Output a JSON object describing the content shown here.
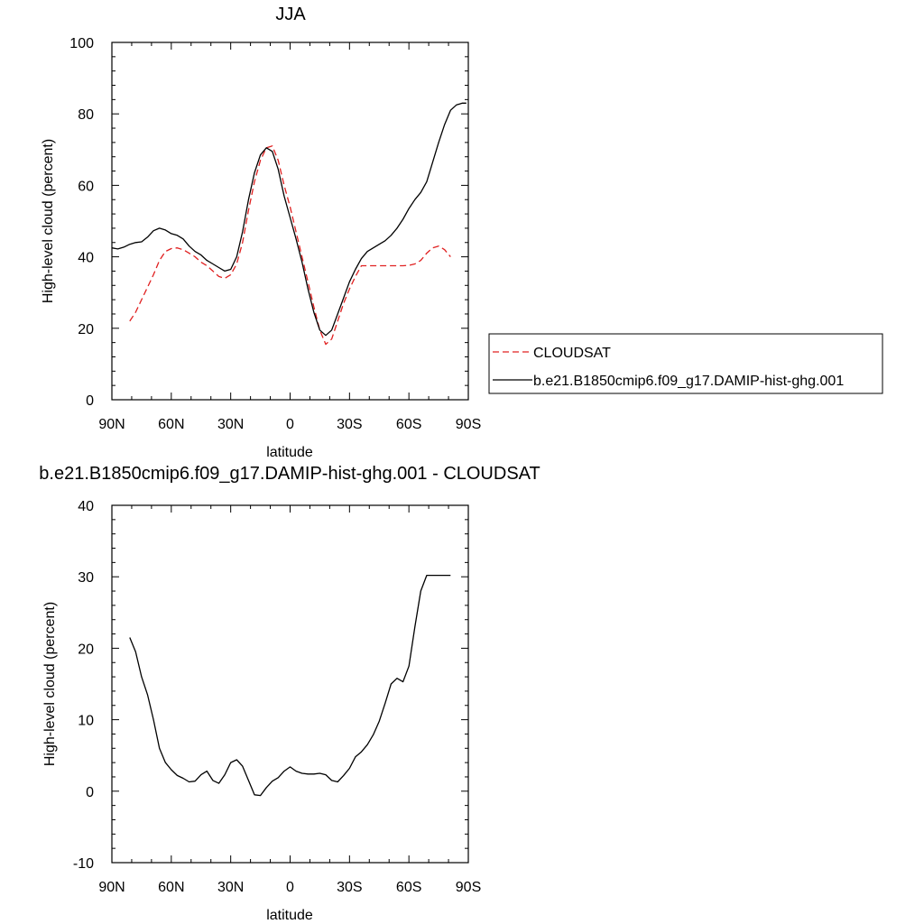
{
  "chart_data": [
    {
      "type": "line",
      "title": "JJA",
      "xlabel": "latitude",
      "ylabel": "High-level cloud (percent)",
      "xlim": [
        -90,
        90
      ],
      "ylim": [
        0,
        100
      ],
      "x_ticks": [
        -90,
        -60,
        -30,
        0,
        30,
        60,
        90
      ],
      "x_tick_labels": [
        "90N",
        "60N",
        "30N",
        "0",
        "30S",
        "60S",
        "90S"
      ],
      "y_ticks": [
        0,
        20,
        40,
        60,
        80,
        100
      ],
      "y_tick_labels": [
        "0",
        "20",
        "40",
        "60",
        "80",
        "100"
      ],
      "legend_position": "right",
      "series": [
        {
          "name": "CLOUDSAT",
          "color": "#e02020",
          "dash": "dashed",
          "x": [
            -81,
            -78,
            -75,
            -72,
            -69,
            -66,
            -63,
            -60,
            -57,
            -54,
            -51,
            -48,
            -45,
            -42,
            -39,
            -36,
            -33,
            -30,
            -27,
            -24,
            -21,
            -18,
            -15,
            -12,
            -9,
            -6,
            -3,
            0,
            3,
            6,
            9,
            12,
            15,
            18,
            21,
            24,
            27,
            30,
            33,
            36,
            39,
            42,
            45,
            48,
            51,
            54,
            57,
            60,
            63,
            66,
            69,
            72,
            75,
            78,
            81
          ],
          "y": [
            22,
            24.5,
            28,
            31.5,
            35,
            39,
            41.5,
            42.3,
            42.5,
            42,
            41,
            40,
            38.5,
            37.5,
            36,
            34.5,
            34,
            35,
            38,
            44,
            53,
            61,
            67,
            70.5,
            71,
            67,
            60,
            54,
            47,
            40,
            33,
            26,
            19.5,
            15.5,
            17,
            22,
            27,
            31,
            34.5,
            37.5,
            37.5,
            37.5,
            37.5,
            37.5,
            37.5,
            37.5,
            37.5,
            37.6,
            38,
            39,
            41,
            42.5,
            43,
            42,
            40
          ]
        },
        {
          "name": "b.e21.B1850cmip6.f09_g17.DAMIP-hist-ghg.001",
          "color": "#000000",
          "dash": "solid",
          "x": [
            -90,
            -87,
            -84,
            -81,
            -78,
            -75,
            -72,
            -69,
            -66,
            -63,
            -60,
            -57,
            -54,
            -51,
            -48,
            -45,
            -42,
            -39,
            -36,
            -33,
            -30,
            -27,
            -24,
            -21,
            -18,
            -15,
            -12,
            -9,
            -6,
            -3,
            0,
            3,
            6,
            9,
            12,
            15,
            18,
            21,
            24,
            27,
            30,
            33,
            36,
            39,
            42,
            45,
            48,
            51,
            54,
            57,
            60,
            63,
            66,
            69,
            72,
            75,
            78,
            81,
            84,
            87,
            89
          ],
          "y": [
            42.5,
            42.2,
            42.7,
            43.5,
            44,
            44.2,
            45.5,
            47.3,
            48,
            47.5,
            46.5,
            46,
            45,
            43,
            41.5,
            40.5,
            39,
            38,
            37,
            36,
            36.5,
            40,
            47,
            56,
            63.5,
            68.5,
            70.5,
            69.5,
            64.5,
            57,
            51,
            45,
            38.5,
            31,
            24.5,
            19.5,
            18,
            19.5,
            24,
            28.5,
            33,
            36.5,
            39.5,
            41.5,
            42.5,
            43.5,
            44.5,
            46,
            48,
            50.5,
            53.5,
            56,
            58,
            61,
            66.5,
            72,
            77,
            81,
            82.5,
            83,
            83
          ]
        }
      ]
    },
    {
      "type": "line",
      "title": "b.e21.B1850cmip6.f09_g17.DAMIP-hist-ghg.001 - CLOUDSAT",
      "xlabel": "latitude",
      "ylabel": "High-level cloud (percent)",
      "xlim": [
        -90,
        90
      ],
      "ylim": [
        -10,
        40
      ],
      "x_ticks": [
        -90,
        -60,
        -30,
        0,
        30,
        60,
        90
      ],
      "x_tick_labels": [
        "90N",
        "60N",
        "30N",
        "0",
        "30S",
        "60S",
        "90S"
      ],
      "y_ticks": [
        -10,
        0,
        10,
        20,
        30,
        40
      ],
      "y_tick_labels": [
        "-10",
        "0",
        "10",
        "20",
        "30",
        "40"
      ],
      "series": [
        {
          "color": "#000000",
          "dash": "solid",
          "x": [
            -81,
            -78,
            -75,
            -72,
            -69,
            -66,
            -63,
            -60,
            -57,
            -54,
            -51,
            -48,
            -45,
            -42,
            -39,
            -36,
            -33,
            -30,
            -27,
            -24,
            -21,
            -18,
            -15,
            -12,
            -9,
            -6,
            -3,
            0,
            3,
            6,
            9,
            12,
            15,
            18,
            21,
            24,
            27,
            30,
            33,
            36,
            39,
            42,
            45,
            48,
            51,
            54,
            57,
            60,
            63,
            66,
            69,
            72,
            75,
            78,
            81
          ],
          "y": [
            21.5,
            19.5,
            16,
            13.5,
            10,
            6,
            4,
            3,
            2.2,
            1.8,
            1.3,
            1.4,
            2.3,
            2.8,
            1.5,
            1.1,
            2.3,
            4,
            4.4,
            3.5,
            1.5,
            -0.5,
            -0.6,
            0.5,
            1.4,
            1.9,
            2.8,
            3.4,
            2.8,
            2.5,
            2.4,
            2.4,
            2.5,
            2.3,
            1.5,
            1.3,
            2.2,
            3.2,
            4.8,
            5.5,
            6.5,
            7.9,
            9.8,
            12.3,
            15,
            15.8,
            15.3,
            17.5,
            23,
            28,
            30.2,
            30.2,
            30.2,
            30.2,
            30.2
          ]
        }
      ]
    }
  ]
}
